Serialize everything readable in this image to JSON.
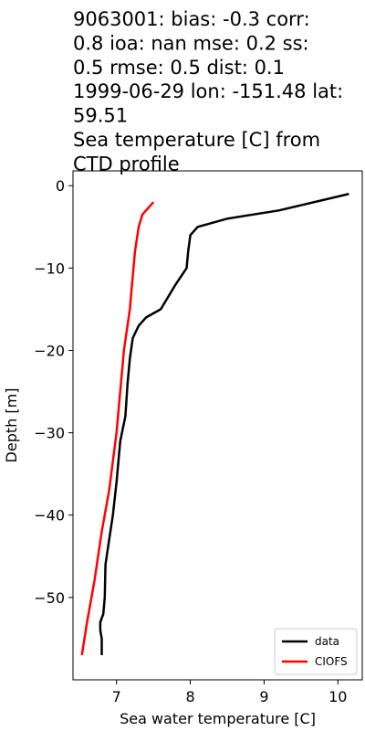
{
  "chart_data": {
    "type": "line",
    "title": [
      "9063001: bias: -0.3  corr:",
      "0.8  ioa: nan  mse: 0.2  ss:",
      "0.5  rmse: 0.5  dist: 0.1",
      "1999-06-29 lon: -151.48 lat:",
      "59.51",
      "Sea temperature [C] from",
      "CTD profile"
    ],
    "x_label": "Sea water temperature [C]",
    "y_label": "Depth [m]",
    "xlim": [
      6.41,
      10.33
    ],
    "ylim": [
      -60.0,
      1.8
    ],
    "xticks": [
      7,
      8,
      9,
      10
    ],
    "yticks": [
      {
        "value": 0,
        "label": "0"
      },
      {
        "value": -10,
        "label": "−10"
      },
      {
        "value": -20,
        "label": "−20"
      },
      {
        "value": -30,
        "label": "−30"
      },
      {
        "value": -40,
        "label": "−40"
      },
      {
        "value": -50,
        "label": "−50"
      }
    ],
    "legend": "lower right",
    "series": [
      {
        "name": "data",
        "color": "#000000",
        "x": [
          10.15,
          9.2,
          8.5,
          8.1,
          8.0,
          7.97,
          7.95,
          7.8,
          7.7,
          7.6,
          7.4,
          7.3,
          7.22,
          7.18,
          7.15,
          7.12,
          7.05,
          7.0,
          6.95,
          6.9,
          6.85,
          6.84,
          6.82,
          6.78,
          6.78,
          6.8,
          6.8
        ],
        "y": [
          -1,
          -3,
          -4,
          -5,
          -6,
          -8,
          -10,
          -12,
          -13.5,
          -15,
          -16,
          -17,
          -18.5,
          -21,
          -24,
          -28,
          -31,
          -36,
          -40,
          -43,
          -46,
          -50,
          -52,
          -53,
          -54,
          -55,
          -57
        ]
      },
      {
        "name": "CIOFS",
        "color": "#ff0000",
        "x": [
          7.5,
          7.45,
          7.35,
          7.3,
          7.25,
          7.18,
          7.1,
          7.0,
          6.9,
          6.8,
          6.7,
          6.6,
          6.53
        ],
        "y": [
          -2,
          -2.5,
          -3.5,
          -5,
          -8,
          -15,
          -20,
          -30,
          -37,
          -42,
          -48,
          -53,
          -57
        ]
      }
    ]
  }
}
